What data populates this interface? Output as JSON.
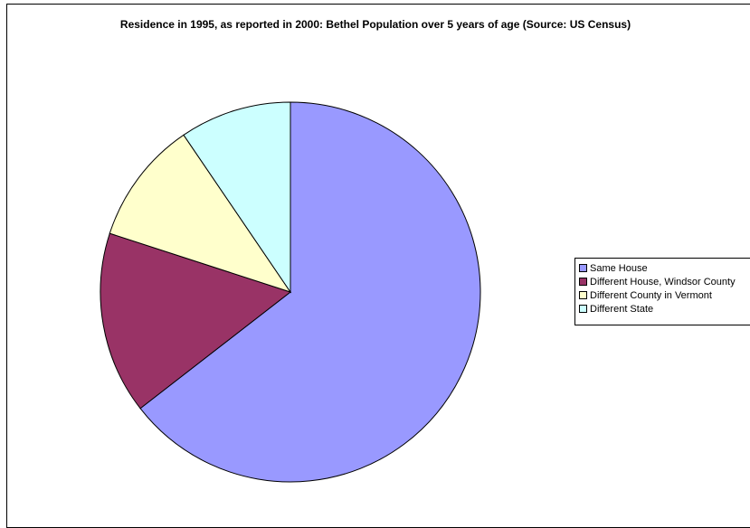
{
  "chart_data": {
    "type": "pie",
    "title": "Residence in 1995, as reported in 2000: Bethel Population over 5 years of age (Source: US Census)",
    "categories": [
      "Same House",
      "Different House, Windsor County",
      "Different County in Vermont",
      "Different State"
    ],
    "values": [
      64.5,
      15.5,
      10.5,
      9.5
    ],
    "colors": [
      "#9999FF",
      "#993366",
      "#FFFFCC",
      "#CCFFFF"
    ],
    "start_angle_deg": 0,
    "direction": "clockwise",
    "legend_position": "right"
  }
}
